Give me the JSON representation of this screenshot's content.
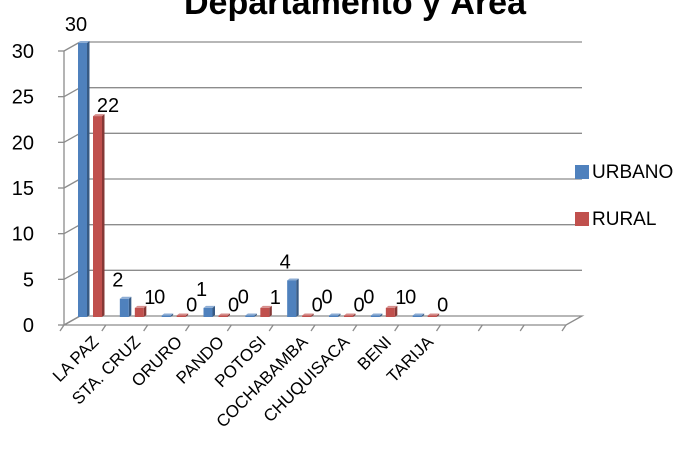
{
  "chart_data": {
    "type": "bar",
    "title": "Departamento y Área",
    "categories": [
      "LA PAZ",
      "STA. CRUZ",
      "ORURO",
      "PANDO",
      "POTOSI",
      "COCHABAMBA",
      "CHUQUISACA",
      "BENI",
      "TARIJA"
    ],
    "series": [
      {
        "name": "URBANO",
        "values": [
          30,
          2,
          0,
          1,
          0,
          4,
          0,
          0,
          0
        ],
        "color": "#4f81bd"
      },
      {
        "name": "RURAL",
        "values": [
          22,
          1,
          0,
          0,
          1,
          0,
          0,
          1,
          0
        ],
        "color": "#c0504d"
      }
    ],
    "y_ticks": [
      "0",
      "5",
      "10",
      "15",
      "20",
      "25",
      "30"
    ],
    "ylim": [
      0,
      30
    ],
    "grid": true,
    "legend_position": "right",
    "render_3d": true
  }
}
